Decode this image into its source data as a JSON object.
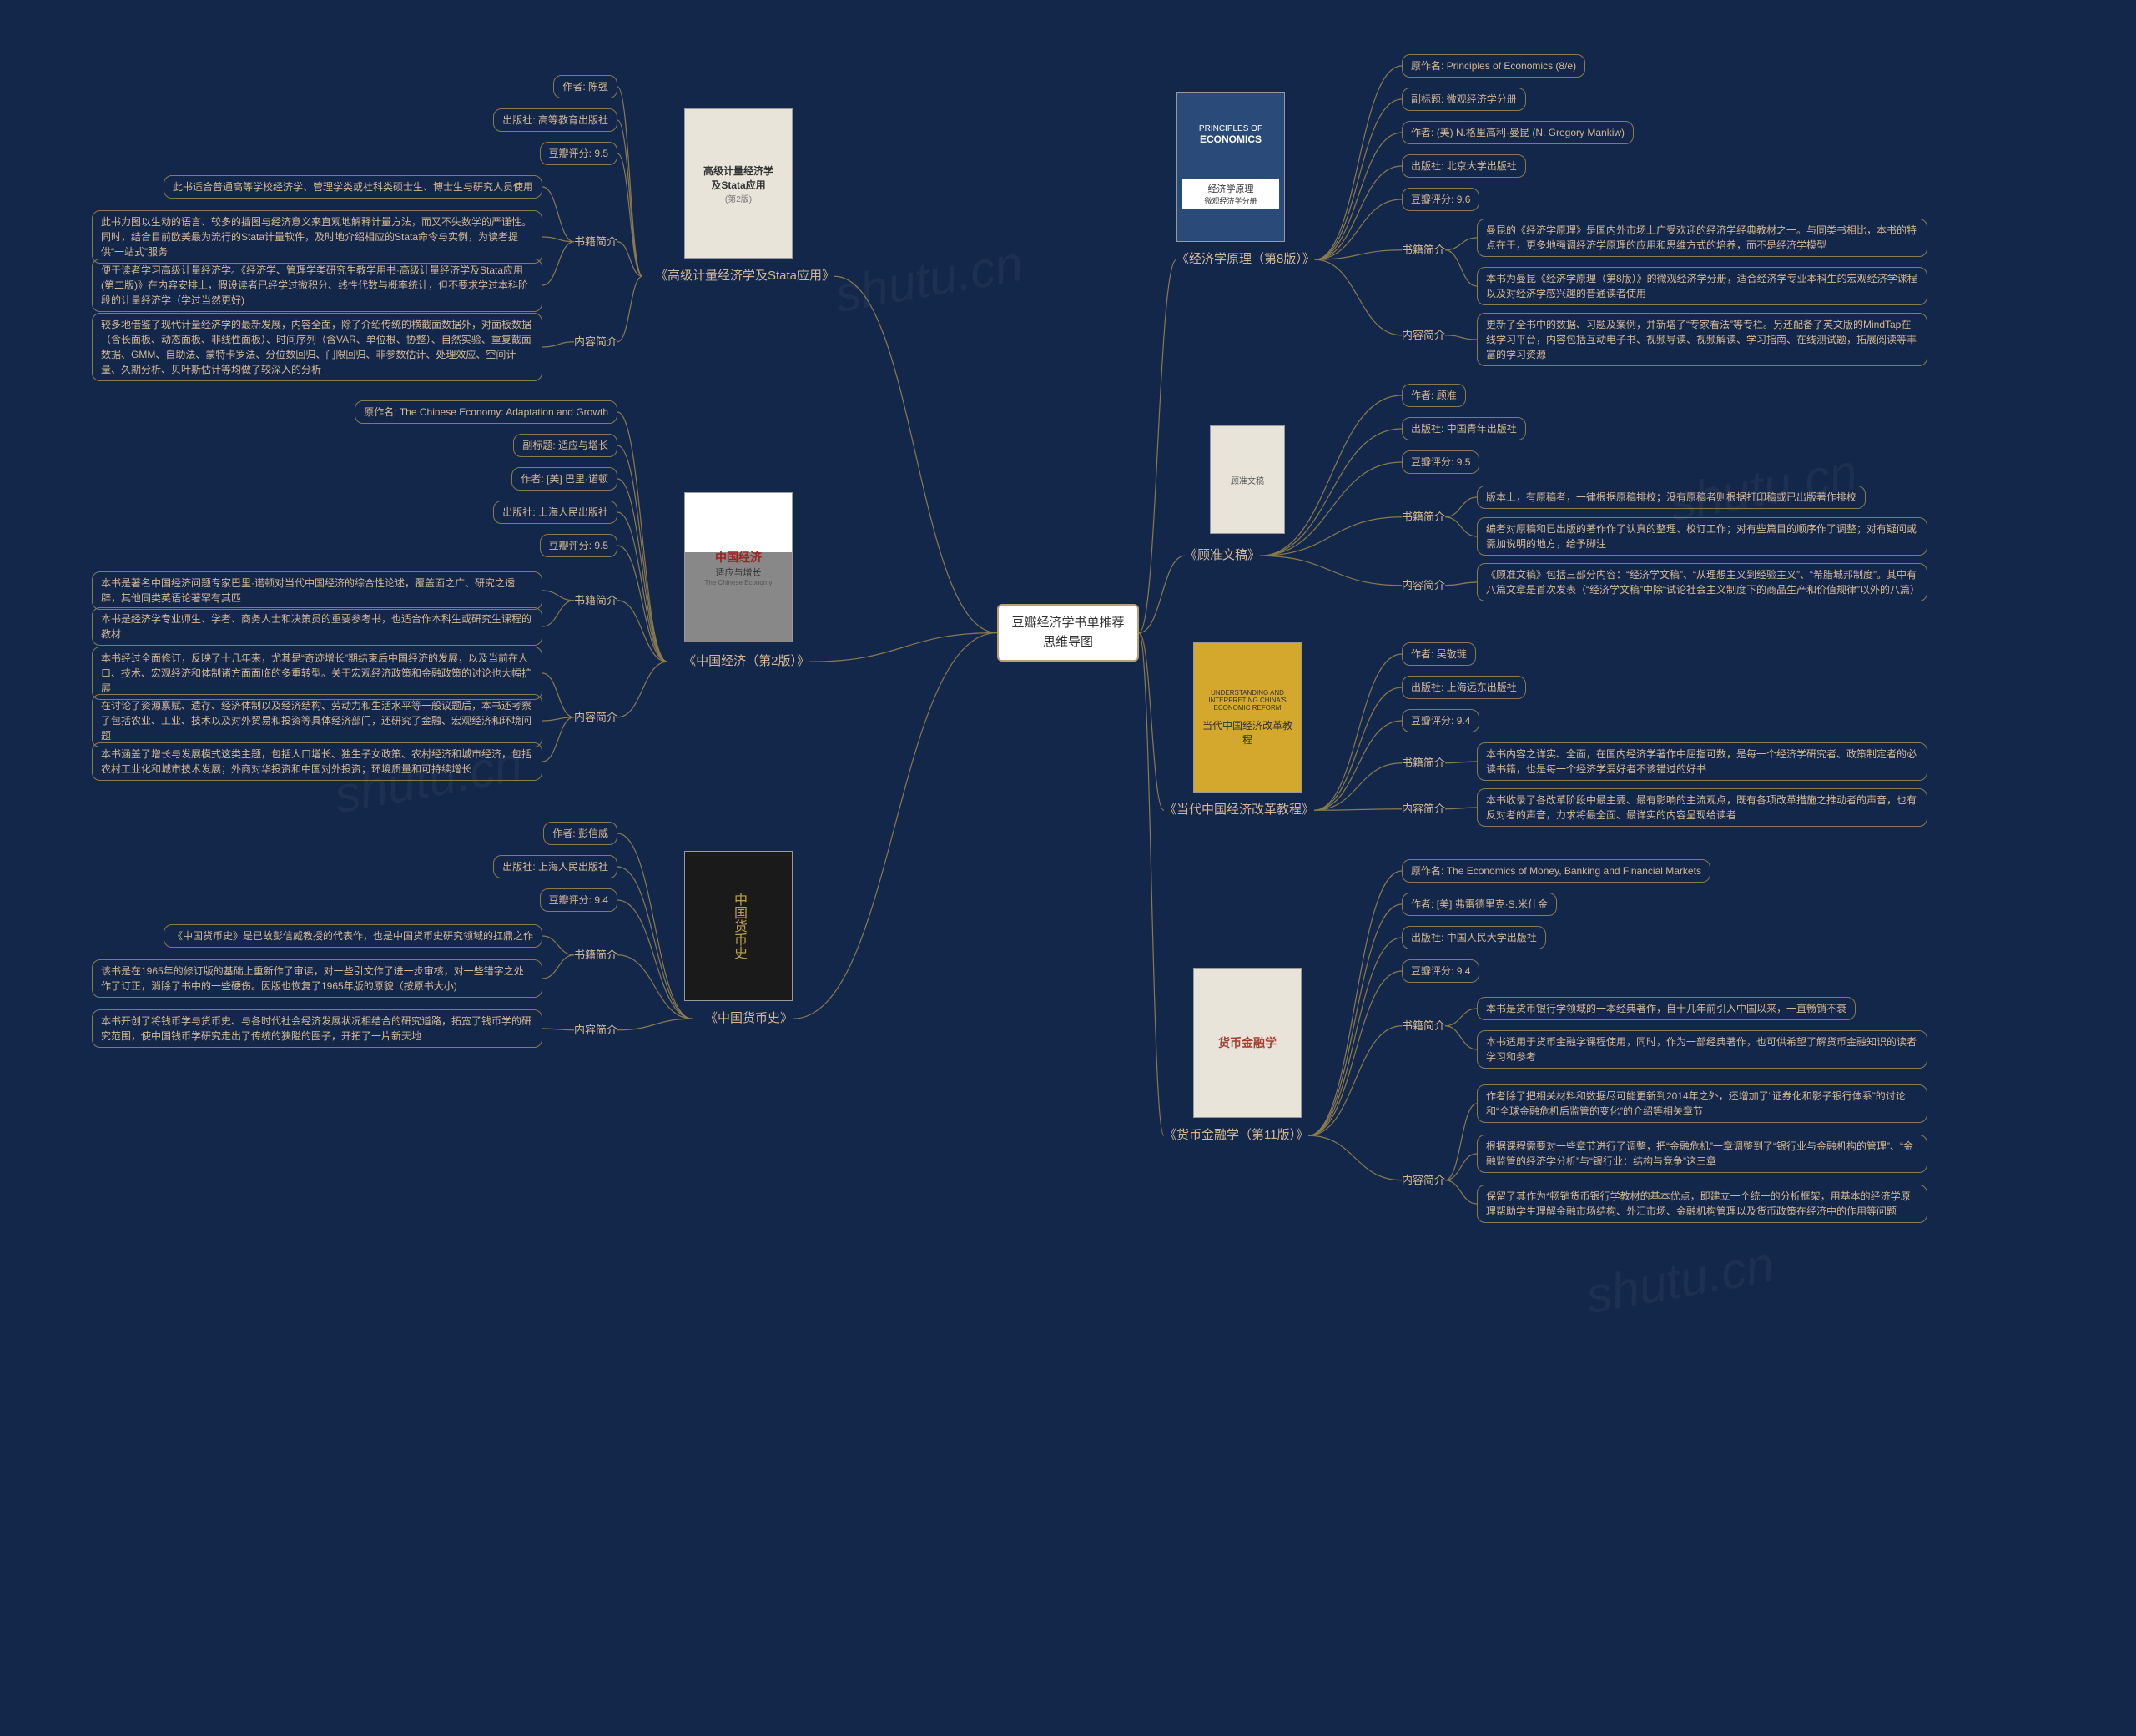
{
  "colors": {
    "bg": "#13274a",
    "line": "#8a7a50",
    "text": "#d4b896",
    "center_bg": "#ffffff",
    "center_border": "#b8a070"
  },
  "center": {
    "title": "豆瓣经济学书单推荐思维导图"
  },
  "watermark": "shutu.cn",
  "books": [
    {
      "key": "principles",
      "title": "《经济学原理（第8版）》",
      "cover": {
        "line1": "PRINCIPLES OF",
        "line2": "ECONOMICS",
        "sub": "经济学原理",
        "sub2": "微观经济学分册"
      },
      "fields": [
        {
          "k": "原作名",
          "v": "Principles of Economics (8/e)"
        },
        {
          "k": "副标题",
          "v": "微观经济学分册"
        },
        {
          "k": "作者",
          "v": "(美) N.格里高利·曼昆 (N. Gregory Mankiw)"
        },
        {
          "k": "出版社",
          "v": "北京大学出版社"
        },
        {
          "k": "豆瓣评分",
          "v": "9.6"
        }
      ],
      "sections": [
        {
          "k": "书籍简介",
          "items": [
            "曼昆的《经济学原理》是国内外市场上广受欢迎的经济学经典教材之一。与同类书相比，本书的特点在于，更多地强调经济学原理的应用和思维方式的培养，而不是经济学模型",
            "本书为曼昆《经济学原理（第8版）》的微观经济学分册，适合经济学专业本科生的宏观经济学课程以及对经济学感兴趣的普通读者使用"
          ]
        },
        {
          "k": "内容简介",
          "items": [
            "更新了全书中的数据、习题及案例，并新增了“专家看法”等专栏。另还配备了英文版的MindTap在线学习平台，内容包括互动电子书、视频导读、视频解读、学习指南、在线测试题，拓展阅读等丰富的学习资源"
          ]
        }
      ]
    },
    {
      "key": "guzhun",
      "title": "《顾准文稿》",
      "cover": {
        "line1": "",
        "sub": "顾准文稿"
      },
      "fields": [
        {
          "k": "作者",
          "v": "顾准"
        },
        {
          "k": "出版社",
          "v": "中国青年出版社"
        },
        {
          "k": "豆瓣评分",
          "v": "9.5"
        }
      ],
      "sections": [
        {
          "k": "书籍简介",
          "items": [
            "版本上，有原稿者，一律根据原稿排校；没有原稿者则根据打印稿或已出版著作排校",
            "编者对原稿和已出版的著作作了认真的整理、校订工作；对有些篇目的顺序作了调整；对有疑问或需加说明的地方，给予脚注"
          ]
        },
        {
          "k": "内容简介",
          "items": [
            "《顾准文稿》包括三部分内容：“经济学文稿”、“从理想主义到经验主义”、“希腊城邦制度”。其中有八篇文章是首次发表（“经济学文稿”中除“试论社会主义制度下的商品生产和价值规律”以外的八篇）"
          ]
        }
      ]
    },
    {
      "key": "reform",
      "title": "《当代中国经济改革教程》",
      "cover": {
        "line1": "UNDERSTANDING AND INTERPRETING CHINA'S ECONOMIC REFORM",
        "sub": "当代中国经济改革教程"
      },
      "fields": [
        {
          "k": "作者",
          "v": "吴敬琏"
        },
        {
          "k": "出版社",
          "v": "上海远东出版社"
        },
        {
          "k": "豆瓣评分",
          "v": "9.4"
        }
      ],
      "sections": [
        {
          "k": "书籍简介",
          "items": [
            "本书内容之详实、全面，在国内经济学著作中屈指可数，是每一个经济学研究者、政策制定者的必读书籍，也是每一个经济学爱好者不该错过的好书"
          ]
        },
        {
          "k": "内容简介",
          "items": [
            "本书收录了各改革阶段中最主要、最有影响的主流观点，既有各项改革措施之推动者的声音，也有反对者的声音，力求将最全面、最详实的内容呈现给读者"
          ]
        }
      ]
    },
    {
      "key": "money",
      "title": "《货币金融学（第11版）》",
      "cover": {
        "line1": "货币金融学",
        "sub": "The Economics of Money, Banking and Financial Markets"
      },
      "fields": [
        {
          "k": "原作名",
          "v": "The Economics of Money, Banking and Financial Markets"
        },
        {
          "k": "作者",
          "v": "[美] 弗雷德里克·S.米什金"
        },
        {
          "k": "出版社",
          "v": "中国人民大学出版社"
        },
        {
          "k": "豆瓣评分",
          "v": "9.4"
        }
      ],
      "sections": [
        {
          "k": "书籍简介",
          "items": [
            "本书是货币银行学领域的一本经典著作，自十几年前引入中国以来，一直畅销不衰",
            "本书适用于货币金融学课程使用，同时，作为一部经典著作，也可供希望了解货币金融知识的读者学习和参考"
          ]
        },
        {
          "k": "内容简介",
          "items": [
            "作者除了把相关材料和数据尽可能更新到2014年之外，还增加了“证券化和影子银行体系”的讨论和“全球金融危机后监管的变化”的介绍等相关章节",
            "根据课程需要对一些章节进行了调整，把“金融危机”一章调整到了“银行业与金融机构的管理”、“金融监管的经济学分析”与“银行业：结构与竞争”这三章",
            "保留了其作为*畅销货币银行学教材的基本优点，即建立一个统一的分析框架，用基本的经济学原理帮助学生理解金融市场结构、外汇市场、金融机构管理以及货币政策在经济中的作用等问题"
          ]
        }
      ]
    },
    {
      "key": "stata",
      "title": "《高级计量经济学及Stata应用》",
      "cover": {
        "line1": "高级计量经济学",
        "line2": "及Stata应用",
        "sub": "(第2版)"
      },
      "fields": [
        {
          "k": "作者",
          "v": "陈强"
        },
        {
          "k": "出版社",
          "v": "高等教育出版社"
        },
        {
          "k": "豆瓣评分",
          "v": "9.5"
        }
      ],
      "sections": [
        {
          "k": "书籍简介",
          "items": [
            "此书适合普通高等学校经济学、管理学类或社科类硕士生、博士生与研究人员使用",
            "此书力图以生动的语言、较多的插图与经济意义来直观地解释计量方法，而又不失数学的严谨性。同时，结合目前欧美最为流行的Stata计量软件，及时地介绍相应的Stata命令与实例，为读者提供“一站式”服务",
            "便于读者学习高级计量经济学。《经济学、管理学类研究生教学用书·高级计量经济学及Stata应用(第二版)》在内容安排上，假设读者已经学过微积分、线性代数与概率统计，但不要求学过本科阶段的计量经济学（学过当然更好)"
          ]
        },
        {
          "k": "内容简介",
          "items": [
            "较多地借鉴了现代计量经济学的最新发展，内容全面，除了介绍传统的横截面数据外，对面板数据（含长面板、动态面板、非线性面板）、时间序列（含VAR、单位根、协整）、自然实验、重复截面数据、GMM、自助法、蒙特卡罗法、分位数回归、门限回归、非参数估计、处理效应、空间计量、久期分析、贝叶斯估计等均做了较深入的分析"
          ]
        }
      ]
    },
    {
      "key": "chinaecon",
      "title": "《中国经济（第2版）》",
      "cover": {
        "line1": "中国经济",
        "line2": "适应与增长",
        "sub": "The Chinese Economy"
      },
      "fields": [
        {
          "k": "原作名",
          "v": "The Chinese Economy: Adaptation and Growth"
        },
        {
          "k": "副标题",
          "v": "适应与增长"
        },
        {
          "k": "作者",
          "v": "[美] 巴里·诺顿"
        },
        {
          "k": "出版社",
          "v": "上海人民出版社"
        },
        {
          "k": "豆瓣评分",
          "v": "9.5"
        }
      ],
      "sections": [
        {
          "k": "书籍简介",
          "items": [
            "本书是著名中国经济问题专家巴里·诺顿对当代中国经济的综合性论述，覆盖面之广、研究之透辟，其他同类英语论著罕有其匹",
            "本书是经济学专业师生、学者、商务人士和决策员的重要参考书，也适合作本科生或研究生课程的教材"
          ]
        },
        {
          "k": "内容简介",
          "items": [
            "本书经过全面修订，反映了十几年来，尤其是“奇迹增长”期结束后中国经济的发展，以及当前在人口、技术、宏观经济和体制诸方面面临的多重转型。关于宏观经济政策和金融政策的讨论也大幅扩展",
            "在讨论了资源禀赋、遗存、经济体制以及经济结构、劳动力和生活水平等一般议题后，本书还考察了包括农业、工业、技术以及对外贸易和投资等具体经济部门，还研究了金融、宏观经济和环境问题",
            "本书涵盖了增长与发展模式这类主题，包括人口增长、独生子女政策、农村经济和城市经济，包括农村工业化和城市技术发展；外商对华投资和中国对外投资；环境质量和可持续增长"
          ]
        }
      ]
    },
    {
      "key": "currency",
      "title": "《中国货币史》",
      "cover": {
        "line1": "中国货币史"
      },
      "fields": [
        {
          "k": "作者",
          "v": "彭信威"
        },
        {
          "k": "出版社",
          "v": "上海人民出版社"
        },
        {
          "k": "豆瓣评分",
          "v": "9.4"
        }
      ],
      "sections": [
        {
          "k": "书籍简介",
          "items": [
            "《中国货币史》是已故彭信威教授的代表作，也是中国货币史研究领域的扛鼎之作",
            "该书是在1965年的修订版的基础上重新作了审读，对一些引文作了进一步审核，对一些错字之处作了订正，消除了书中的一些硬伤。因版也恢复了1965年版的原貌（按原书大小)"
          ]
        },
        {
          "k": "内容简介",
          "items": [
            "本书开创了将钱币学与货币史、与各时代社会经济发展状况相结合的研究道路，拓宽了钱币学的研究范围，使中国钱币学研究走出了传统的狭隘的圈子，开拓了一片新天地"
          ]
        }
      ]
    }
  ]
}
